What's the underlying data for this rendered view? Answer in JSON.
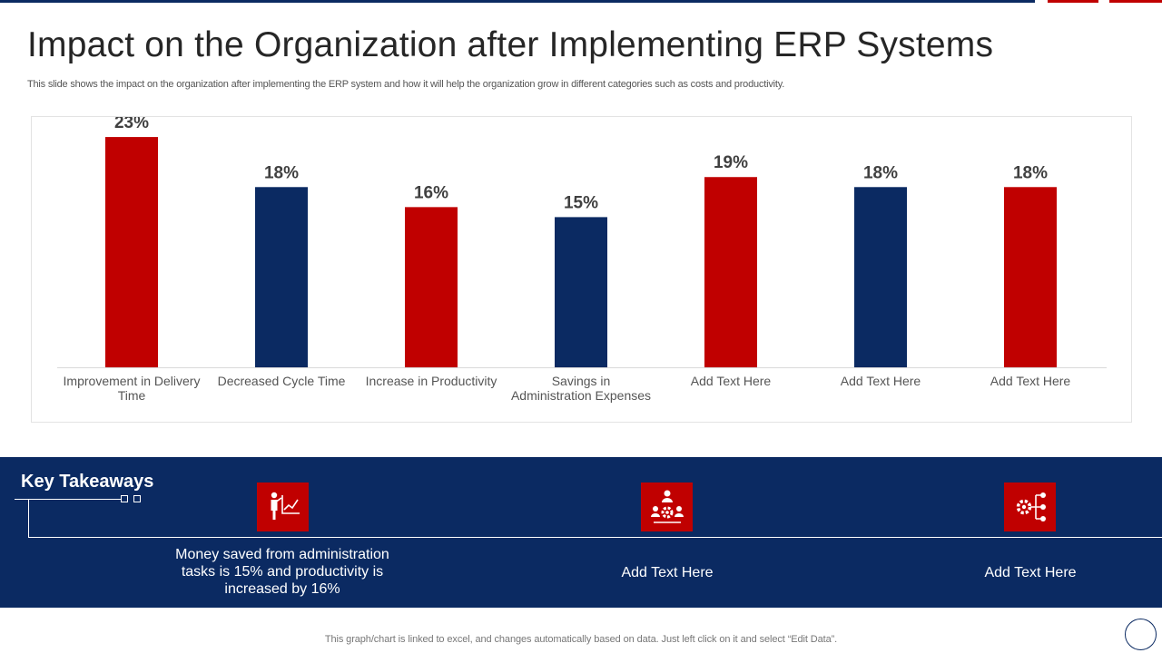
{
  "page": {
    "title": "Impact on the Organization after Implementing ERP Systems",
    "subtitle": "This slide shows the impact on the organization after implementing the ERP system and how it will help the organization grow in different categories such as costs and productivity.",
    "footer": "This graph/chart is linked to excel, and changes automatically based on data. Just left click on it and select “Edit Data”."
  },
  "colors": {
    "red": "#c00000",
    "navy": "#0b2a62"
  },
  "chart_data": {
    "type": "bar",
    "title": "",
    "xlabel": "",
    "ylabel": "",
    "ylim": [
      0,
      25
    ],
    "grid": false,
    "categories": [
      "Improvement in Delivery Time",
      "Decreased Cycle Time",
      "Increase in Productivity",
      "Savings in Administration Expenses",
      "Add Text Here",
      "Add Text Here",
      "Add Text Here"
    ],
    "values": [
      23,
      18,
      16,
      15,
      19,
      18,
      18
    ],
    "value_labels": [
      "23%",
      "18%",
      "16%",
      "15%",
      "19%",
      "18%",
      "18%"
    ],
    "bar_colors": [
      "#c00000",
      "#0b2a62",
      "#c00000",
      "#0b2a62",
      "#c00000",
      "#0b2a62",
      "#c00000"
    ]
  },
  "takeaways": {
    "title": "Key Takeaways",
    "items": [
      {
        "icon": "presenter-chart-icon",
        "text": "Money saved from administration tasks is 15% and productivity is increased by 16%"
      },
      {
        "icon": "team-gear-icon",
        "text": "Add Text Here"
      },
      {
        "icon": "gear-network-icon",
        "text": "Add Text Here"
      }
    ]
  }
}
